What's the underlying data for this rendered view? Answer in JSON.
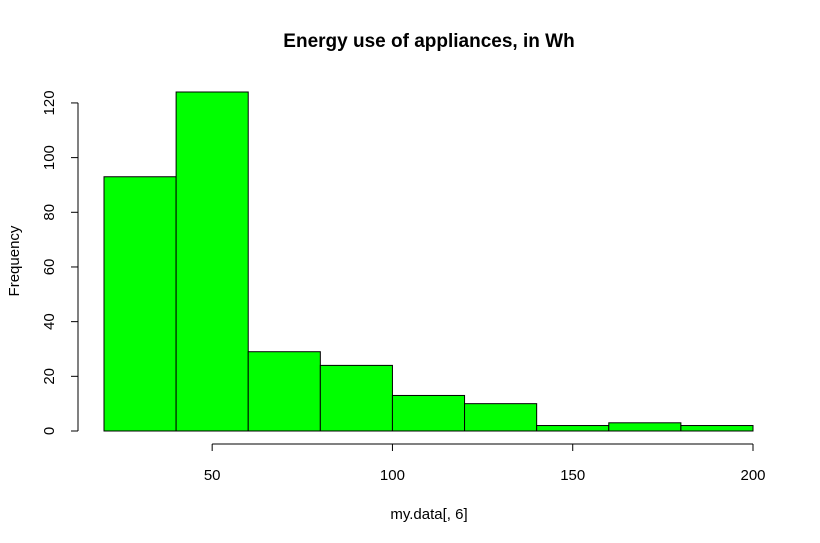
{
  "chart_data": {
    "type": "bar",
    "subtype": "histogram",
    "title": "Energy use of appliances, in Wh",
    "xlabel": "my.data[, 6]",
    "ylabel": "Frequency",
    "bins": [
      {
        "start": 20,
        "end": 40,
        "count": 93
      },
      {
        "start": 40,
        "end": 60,
        "count": 124
      },
      {
        "start": 60,
        "end": 80,
        "count": 29
      },
      {
        "start": 80,
        "end": 100,
        "count": 24
      },
      {
        "start": 100,
        "end": 120,
        "count": 13
      },
      {
        "start": 120,
        "end": 140,
        "count": 10
      },
      {
        "start": 140,
        "end": 160,
        "count": 2
      },
      {
        "start": 160,
        "end": 180,
        "count": 3
      },
      {
        "start": 180,
        "end": 200,
        "count": 2
      }
    ],
    "x_ticks": [
      50,
      100,
      150,
      200
    ],
    "y_ticks": [
      0,
      20,
      40,
      60,
      80,
      100,
      120
    ],
    "xlim": [
      20,
      200
    ],
    "ylim": [
      0,
      124
    ],
    "bar_color": "#00ff00",
    "bar_edge_color": "#000000",
    "grid": false,
    "legend": "none"
  }
}
